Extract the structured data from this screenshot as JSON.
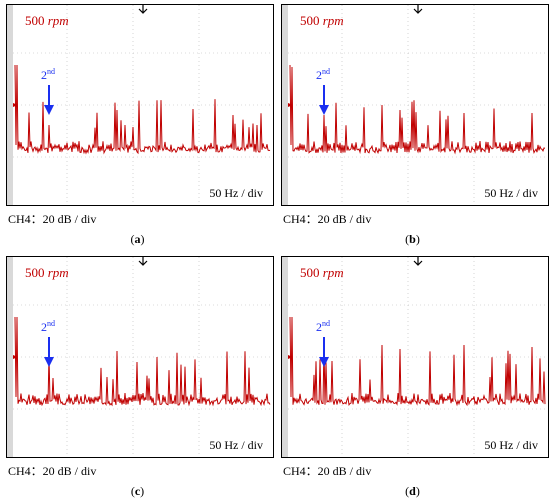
{
  "panels": [
    {
      "id": "a",
      "caption_open": "(",
      "caption_letter": "a",
      "caption_close": ")",
      "rpm_value": "500",
      "rpm_unit": "rpm",
      "freq_scale": "50 Hz / div",
      "amp_scale": "CH4：20 dB / div",
      "harmonic_marker": {
        "base": "2",
        "sup": "nd"
      }
    },
    {
      "id": "b",
      "caption_open": "(",
      "caption_letter": "b",
      "caption_close": ")",
      "rpm_value": "500",
      "rpm_unit": "rpm",
      "freq_scale": "50 Hz / div",
      "amp_scale": "CH4：20 dB / div",
      "harmonic_marker": {
        "base": "2",
        "sup": "nd"
      }
    },
    {
      "id": "c",
      "caption_open": "(",
      "caption_letter": "c",
      "caption_close": ")",
      "rpm_value": "500",
      "rpm_unit": "rpm",
      "freq_scale": "50 Hz / div",
      "amp_scale": "CH4：20 dB / div",
      "harmonic_marker": {
        "base": "2",
        "sup": "nd"
      }
    },
    {
      "id": "d",
      "caption_open": "(",
      "caption_letter": "d",
      "caption_close": ")",
      "rpm_value": "500",
      "rpm_unit": "rpm",
      "freq_scale": "50 Hz / div",
      "amp_scale": "CH4：20 dB / div",
      "harmonic_marker": {
        "base": "2",
        "sup": "nd"
      }
    }
  ],
  "colors": {
    "trace": "#c00000",
    "annotation": "#1a2ff0",
    "grid": "#b8b8b8",
    "left_bar": "#d9d9d9"
  },
  "icons": {
    "trigger_marker": "trigger-arrow-icon",
    "ground_marker": "ground-level-icon"
  }
}
